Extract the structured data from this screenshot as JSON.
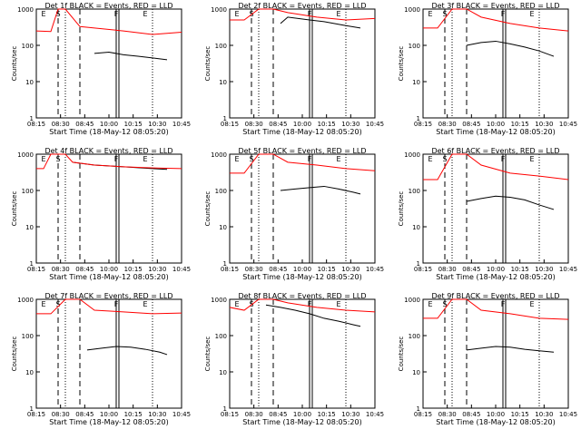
{
  "colors": {
    "events": "#000000",
    "lld": "#ff0000",
    "axes": "#000000",
    "background": "#ffffff"
  },
  "chart_data": [
    {
      "type": "line",
      "title": "Det 1f BLACK = Events, RED = LLD",
      "xlabel": "Start Time (18-May-12 08:05:20)",
      "ylabel": "Counts/sec",
      "x_ticks": [
        "08:15",
        "08:30",
        "08:45",
        "10:00",
        "10:15",
        "10:30",
        "10:45"
      ],
      "y_ticks": [
        "1",
        "10",
        "100",
        "1000"
      ],
      "yscale": "log",
      "ylim": [
        1,
        1000
      ],
      "markers": [
        "E",
        "S",
        "F",
        "E"
      ],
      "series": [
        {
          "name": "Events",
          "color": "#000000",
          "x": [
            0.4,
            0.5,
            0.6,
            0.7,
            0.8,
            0.9
          ],
          "y": [
            60,
            65,
            55,
            50,
            45,
            40
          ]
        },
        {
          "name": "LLD",
          "color": "#ff0000",
          "x": [
            0.0,
            0.1,
            0.15,
            0.2,
            0.3,
            0.4,
            0.6,
            0.8,
            1.0
          ],
          "y": [
            250,
            240,
            1000,
            1000,
            330,
            300,
            250,
            200,
            230
          ]
        }
      ]
    },
    {
      "type": "line",
      "title": "Det 2f BLACK = Events, RED = LLD",
      "xlabel": "Start Time (18-May-12 08:05:20)",
      "ylabel": "Counts/sec",
      "x_ticks": [
        "08:15",
        "08:30",
        "08:45",
        "10:00",
        "10:15",
        "10:30",
        "10:45"
      ],
      "y_ticks": [
        "1",
        "10",
        "100",
        "1000"
      ],
      "yscale": "log",
      "ylim": [
        1,
        1000
      ],
      "markers": [
        "E",
        "S",
        "F",
        "E"
      ],
      "series": [
        {
          "name": "Events",
          "color": "#000000",
          "x": [
            0.35,
            0.4,
            0.55,
            0.65,
            0.8,
            0.9
          ],
          "y": [
            400,
            600,
            500,
            450,
            350,
            300
          ]
        },
        {
          "name": "LLD",
          "color": "#ff0000",
          "x": [
            0.0,
            0.1,
            0.2,
            0.3,
            0.4,
            0.6,
            0.8,
            1.0
          ],
          "y": [
            500,
            500,
            1000,
            1000,
            800,
            600,
            500,
            550
          ]
        }
      ]
    },
    {
      "type": "line",
      "title": "Det 3f BLACK = Events, RED = LLD",
      "xlabel": "Start Time (18-May-12 08:05:20)",
      "ylabel": "Counts/sec",
      "x_ticks": [
        "08:15",
        "08:30",
        "08:45",
        "10:00",
        "10:15",
        "10:30",
        "10:45"
      ],
      "y_ticks": [
        "1",
        "10",
        "100",
        "1000"
      ],
      "yscale": "log",
      "ylim": [
        1,
        1000
      ],
      "markers": [
        "E",
        "S",
        "F",
        "E"
      ],
      "series": [
        {
          "name": "Events",
          "color": "#000000",
          "x": [
            0.3,
            0.4,
            0.5,
            0.6,
            0.7,
            0.8,
            0.9
          ],
          "y": [
            100,
            120,
            130,
            110,
            90,
            70,
            50
          ]
        },
        {
          "name": "LLD",
          "color": "#ff0000",
          "x": [
            0.0,
            0.1,
            0.2,
            0.3,
            0.4,
            0.6,
            0.8,
            1.0
          ],
          "y": [
            300,
            300,
            1000,
            1000,
            600,
            400,
            300,
            250
          ]
        }
      ]
    },
    {
      "type": "line",
      "title": "Det 4f BLACK = Events, RED = LLD",
      "xlabel": "Start Time (18-May-12 08:05:20)",
      "ylabel": "Counts/sec",
      "x_ticks": [
        "08:15",
        "08:30",
        "08:45",
        "10:00",
        "10:15",
        "10:30",
        "10:45"
      ],
      "y_ticks": [
        "1",
        "10",
        "100",
        "1000"
      ],
      "yscale": "log",
      "ylim": [
        1,
        1000
      ],
      "markers": [
        "E",
        "S",
        "F",
        "E"
      ],
      "series": [
        {
          "name": "Events",
          "color": "#000000",
          "x": [
            0.25,
            0.4,
            0.6,
            0.8,
            0.9
          ],
          "y": [
            600,
            500,
            450,
            400,
            380
          ]
        },
        {
          "name": "LLD",
          "color": "#ff0000",
          "x": [
            0.0,
            0.05,
            0.1,
            0.2,
            0.25,
            0.4,
            0.6,
            0.8,
            1.0
          ],
          "y": [
            400,
            400,
            1000,
            1000,
            600,
            500,
            450,
            420,
            400
          ]
        }
      ]
    },
    {
      "type": "line",
      "title": "Det 5f BLACK = Events, RED = LLD",
      "xlabel": "Start Time (18-May-12 08:05:20)",
      "ylabel": "Counts/sec",
      "x_ticks": [
        "08:15",
        "08:30",
        "08:45",
        "10:00",
        "10:15",
        "10:30",
        "10:45"
      ],
      "y_ticks": [
        "1",
        "10",
        "100",
        "1000"
      ],
      "yscale": "log",
      "ylim": [
        1,
        1000
      ],
      "markers": [
        "E",
        "S",
        "F",
        "E"
      ],
      "series": [
        {
          "name": "Events",
          "color": "#000000",
          "x": [
            0.35,
            0.45,
            0.55,
            0.65,
            0.75,
            0.85,
            0.9
          ],
          "y": [
            100,
            110,
            120,
            130,
            110,
            90,
            80
          ]
        },
        {
          "name": "LLD",
          "color": "#ff0000",
          "x": [
            0.0,
            0.1,
            0.2,
            0.3,
            0.4,
            0.6,
            0.8,
            1.0
          ],
          "y": [
            300,
            300,
            1000,
            1000,
            600,
            500,
            400,
            350
          ]
        }
      ]
    },
    {
      "type": "line",
      "title": "Det 6f BLACK = Events, RED = LLD",
      "xlabel": "Start Time (18-May-12 08:05:20)",
      "ylabel": "Counts/sec",
      "x_ticks": [
        "08:15",
        "08:30",
        "08:45",
        "10:00",
        "10:15",
        "10:30",
        "10:45"
      ],
      "y_ticks": [
        "1",
        "10",
        "100",
        "1000"
      ],
      "yscale": "log",
      "ylim": [
        1,
        1000
      ],
      "markers": [
        "E",
        "S",
        "F",
        "E"
      ],
      "series": [
        {
          "name": "Events",
          "color": "#000000",
          "x": [
            0.3,
            0.4,
            0.5,
            0.6,
            0.7,
            0.8,
            0.9
          ],
          "y": [
            50,
            60,
            70,
            65,
            55,
            40,
            30
          ]
        },
        {
          "name": "LLD",
          "color": "#ff0000",
          "x": [
            0.0,
            0.1,
            0.2,
            0.3,
            0.4,
            0.6,
            0.8,
            1.0
          ],
          "y": [
            200,
            200,
            1000,
            1000,
            500,
            300,
            250,
            200
          ]
        }
      ]
    },
    {
      "type": "line",
      "title": "Det 7f BLACK = Events, RED = LLD",
      "xlabel": "Start Time (18-May-12 08:05:20)",
      "ylabel": "Counts/sec",
      "x_ticks": [
        "08:15",
        "08:30",
        "08:45",
        "10:00",
        "10:15",
        "10:30",
        "10:45"
      ],
      "y_ticks": [
        "1",
        "10",
        "100",
        "1000"
      ],
      "yscale": "log",
      "ylim": [
        1,
        1000
      ],
      "markers": [
        "E",
        "S",
        "F",
        "E"
      ],
      "series": [
        {
          "name": "Events",
          "color": "#000000",
          "x": [
            0.35,
            0.45,
            0.55,
            0.65,
            0.75,
            0.85,
            0.9
          ],
          "y": [
            40,
            45,
            50,
            48,
            42,
            35,
            30
          ]
        },
        {
          "name": "LLD",
          "color": "#ff0000",
          "x": [
            0.0,
            0.1,
            0.2,
            0.3,
            0.4,
            0.6,
            0.8,
            1.0
          ],
          "y": [
            400,
            400,
            1000,
            1000,
            500,
            450,
            400,
            420
          ]
        }
      ]
    },
    {
      "type": "line",
      "title": "Det 8f BLACK = Events, RED = LLD",
      "xlabel": "Start Time (18-May-12 08:05:20)",
      "ylabel": "Counts/sec",
      "x_ticks": [
        "08:15",
        "08:30",
        "08:45",
        "10:00",
        "10:15",
        "10:30",
        "10:45"
      ],
      "y_ticks": [
        "1",
        "10",
        "100",
        "1000"
      ],
      "yscale": "log",
      "ylim": [
        1,
        1000
      ],
      "markers": [
        "E",
        "S",
        "F",
        "E"
      ],
      "series": [
        {
          "name": "Events",
          "color": "#000000",
          "x": [
            0.25,
            0.35,
            0.45,
            0.55,
            0.65,
            0.75,
            0.85,
            0.9
          ],
          "y": [
            700,
            600,
            500,
            400,
            300,
            250,
            200,
            180
          ]
        },
        {
          "name": "LLD",
          "color": "#ff0000",
          "x": [
            0.0,
            0.1,
            0.2,
            0.3,
            0.4,
            0.6,
            0.8,
            1.0
          ],
          "y": [
            600,
            500,
            1000,
            1000,
            800,
            600,
            500,
            450
          ]
        }
      ]
    },
    {
      "type": "line",
      "title": "Det 9f BLACK = Events, RED = LLD",
      "xlabel": "Start Time (18-May-12 08:05:20)",
      "ylabel": "Counts/sec",
      "x_ticks": [
        "08:15",
        "08:30",
        "08:45",
        "10:00",
        "10:15",
        "10:30",
        "10:45"
      ],
      "y_ticks": [
        "1",
        "10",
        "100",
        "1000"
      ],
      "yscale": "log",
      "ylim": [
        1,
        1000
      ],
      "markers": [
        "E",
        "S",
        "F",
        "E"
      ],
      "series": [
        {
          "name": "Events",
          "color": "#000000",
          "x": [
            0.3,
            0.4,
            0.5,
            0.6,
            0.7,
            0.8,
            0.9
          ],
          "y": [
            40,
            45,
            50,
            48,
            42,
            38,
            35
          ]
        },
        {
          "name": "LLD",
          "color": "#ff0000",
          "x": [
            0.0,
            0.1,
            0.2,
            0.3,
            0.4,
            0.6,
            0.8,
            1.0
          ],
          "y": [
            300,
            300,
            1000,
            1000,
            500,
            400,
            300,
            280
          ]
        }
      ]
    }
  ]
}
